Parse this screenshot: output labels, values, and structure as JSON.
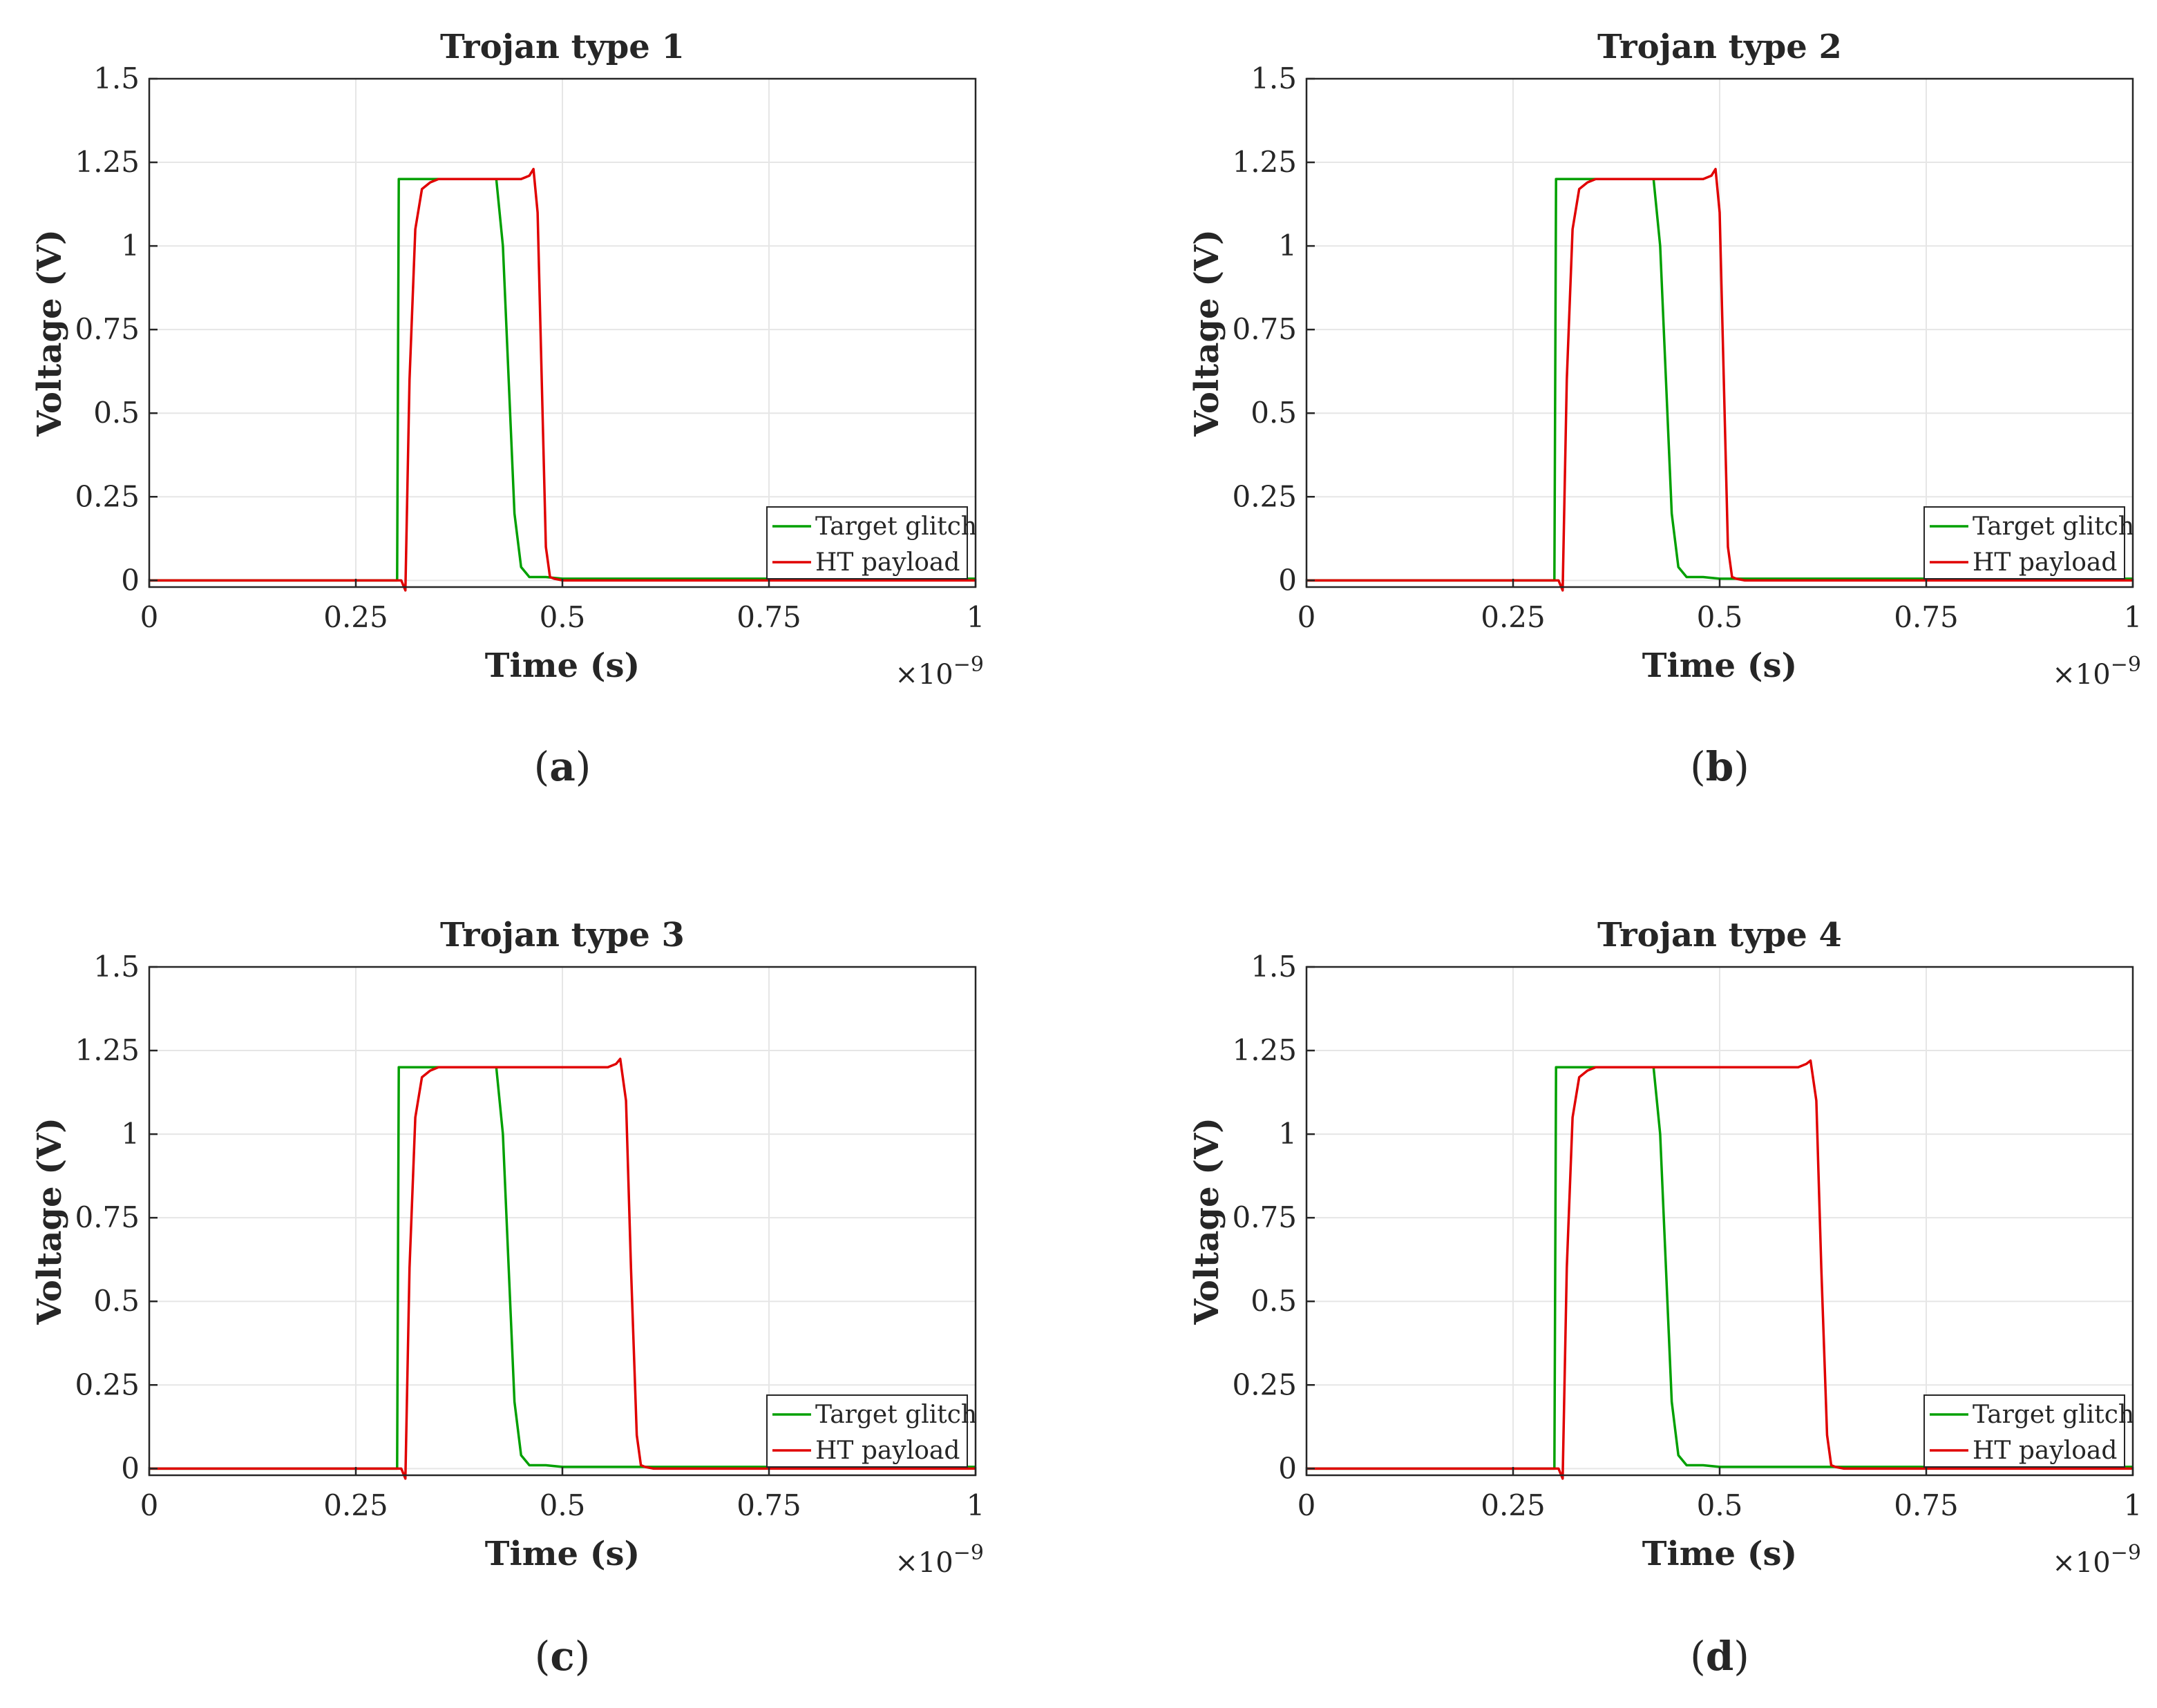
{
  "chart_data": [
    {
      "type": "line",
      "title": "Trojan type 1",
      "caption_label": "a",
      "xlabel": "Time (s)",
      "ylabel": "Voltage (V)",
      "x_multiplier": "×10",
      "x_exponent": "−9",
      "xlim": [
        0,
        1
      ],
      "ylim": [
        -0.02,
        1.5
      ],
      "xticks": [
        0,
        0.25,
        0.5,
        0.75,
        1
      ],
      "xtick_labels": [
        "0",
        "0.25",
        "0.5",
        "0.75",
        "1"
      ],
      "yticks": [
        0,
        0.25,
        0.5,
        0.75,
        1,
        1.25,
        1.5
      ],
      "ytick_labels": [
        "0",
        "0.25",
        "0.5",
        "0.75",
        "1",
        "1.25",
        "1.5"
      ],
      "series": [
        {
          "name": "Target glitch",
          "color": "#00a000",
          "x": [
            0,
            0.3,
            0.302,
            0.42,
            0.428,
            0.435,
            0.442,
            0.45,
            0.46,
            0.48,
            0.5,
            1
          ],
          "y": [
            0,
            0,
            1.2,
            1.2,
            1.0,
            0.6,
            0.2,
            0.04,
            0.01,
            0.01,
            0.005,
            0.005
          ]
        },
        {
          "name": "HT payload",
          "color": "#e00000",
          "x": [
            0,
            0.305,
            0.31,
            0.315,
            0.322,
            0.33,
            0.34,
            0.35,
            0.45,
            0.46,
            0.465,
            0.47,
            0.475,
            0.48,
            0.485,
            0.49,
            0.5,
            1
          ],
          "y": [
            0,
            0,
            -0.03,
            0.6,
            1.05,
            1.17,
            1.19,
            1.2,
            1.2,
            1.21,
            1.23,
            1.1,
            0.6,
            0.1,
            0.01,
            0.005,
            0,
            0
          ]
        }
      ]
    },
    {
      "type": "line",
      "title": "Trojan type 2",
      "caption_label": "b",
      "xlabel": "Time (s)",
      "ylabel": "Voltage (V)",
      "x_multiplier": "×10",
      "x_exponent": "−9",
      "xlim": [
        0,
        1
      ],
      "ylim": [
        -0.02,
        1.5
      ],
      "xticks": [
        0,
        0.25,
        0.5,
        0.75,
        1
      ],
      "xtick_labels": [
        "0",
        "0.25",
        "0.5",
        "0.75",
        "1"
      ],
      "yticks": [
        0,
        0.25,
        0.5,
        0.75,
        1,
        1.25,
        1.5
      ],
      "ytick_labels": [
        "0",
        "0.25",
        "0.5",
        "0.75",
        "1",
        "1.25",
        "1.5"
      ],
      "series": [
        {
          "name": "Target glitch",
          "color": "#00a000",
          "x": [
            0,
            0.3,
            0.302,
            0.42,
            0.428,
            0.435,
            0.442,
            0.45,
            0.46,
            0.48,
            0.5,
            1
          ],
          "y": [
            0,
            0,
            1.2,
            1.2,
            1.0,
            0.6,
            0.2,
            0.04,
            0.01,
            0.01,
            0.005,
            0.005
          ]
        },
        {
          "name": "HT payload",
          "color": "#e00000",
          "x": [
            0,
            0.305,
            0.31,
            0.315,
            0.322,
            0.33,
            0.34,
            0.35,
            0.48,
            0.49,
            0.495,
            0.5,
            0.505,
            0.51,
            0.515,
            0.52,
            0.53,
            1
          ],
          "y": [
            0,
            0,
            -0.03,
            0.6,
            1.05,
            1.17,
            1.19,
            1.2,
            1.2,
            1.21,
            1.23,
            1.1,
            0.6,
            0.1,
            0.01,
            0.005,
            0,
            0
          ]
        }
      ]
    },
    {
      "type": "line",
      "title": "Trojan type 3",
      "caption_label": "c",
      "xlabel": "Time (s)",
      "ylabel": "Voltage (V)",
      "x_multiplier": "×10",
      "x_exponent": "−9",
      "xlim": [
        0,
        1
      ],
      "ylim": [
        -0.02,
        1.5
      ],
      "xticks": [
        0,
        0.25,
        0.5,
        0.75,
        1
      ],
      "xtick_labels": [
        "0",
        "0.25",
        "0.5",
        "0.75",
        "1"
      ],
      "yticks": [
        0,
        0.25,
        0.5,
        0.75,
        1,
        1.25,
        1.5
      ],
      "ytick_labels": [
        "0",
        "0.25",
        "0.5",
        "0.75",
        "1",
        "1.25",
        "1.5"
      ],
      "series": [
        {
          "name": "Target glitch",
          "color": "#00a000",
          "x": [
            0,
            0.3,
            0.302,
            0.42,
            0.428,
            0.435,
            0.442,
            0.45,
            0.46,
            0.48,
            0.5,
            1
          ],
          "y": [
            0,
            0,
            1.2,
            1.2,
            1.0,
            0.6,
            0.2,
            0.04,
            0.01,
            0.01,
            0.005,
            0.005
          ]
        },
        {
          "name": "HT payload",
          "color": "#e00000",
          "x": [
            0,
            0.305,
            0.31,
            0.315,
            0.322,
            0.33,
            0.34,
            0.35,
            0.555,
            0.565,
            0.57,
            0.577,
            0.583,
            0.59,
            0.595,
            0.6,
            0.61,
            1
          ],
          "y": [
            0,
            0,
            -0.03,
            0.6,
            1.05,
            1.17,
            1.19,
            1.2,
            1.2,
            1.21,
            1.225,
            1.1,
            0.6,
            0.1,
            0.01,
            0.005,
            0,
            0
          ]
        }
      ]
    },
    {
      "type": "line",
      "title": "Trojan type 4",
      "caption_label": "d",
      "xlabel": "Time (s)",
      "ylabel": "Voltage (V)",
      "x_multiplier": "×10",
      "x_exponent": "−9",
      "xlim": [
        0,
        1
      ],
      "ylim": [
        -0.02,
        1.5
      ],
      "xticks": [
        0,
        0.25,
        0.5,
        0.75,
        1
      ],
      "xtick_labels": [
        "0",
        "0.25",
        "0.5",
        "0.75",
        "1"
      ],
      "yticks": [
        0,
        0.25,
        0.5,
        0.75,
        1,
        1.25,
        1.5
      ],
      "ytick_labels": [
        "0",
        "0.25",
        "0.5",
        "0.75",
        "1",
        "1.25",
        "1.5"
      ],
      "series": [
        {
          "name": "Target glitch",
          "color": "#00a000",
          "x": [
            0,
            0.3,
            0.302,
            0.42,
            0.428,
            0.435,
            0.442,
            0.45,
            0.46,
            0.48,
            0.5,
            1
          ],
          "y": [
            0,
            0,
            1.2,
            1.2,
            1.0,
            0.6,
            0.2,
            0.04,
            0.01,
            0.01,
            0.005,
            0.005
          ]
        },
        {
          "name": "HT payload",
          "color": "#e00000",
          "x": [
            0,
            0.305,
            0.31,
            0.315,
            0.322,
            0.33,
            0.34,
            0.35,
            0.595,
            0.605,
            0.61,
            0.617,
            0.623,
            0.63,
            0.635,
            0.64,
            0.65,
            1
          ],
          "y": [
            0,
            0,
            -0.03,
            0.6,
            1.05,
            1.17,
            1.19,
            1.2,
            1.2,
            1.21,
            1.22,
            1.1,
            0.6,
            0.1,
            0.01,
            0.005,
            0,
            0
          ]
        }
      ]
    }
  ]
}
